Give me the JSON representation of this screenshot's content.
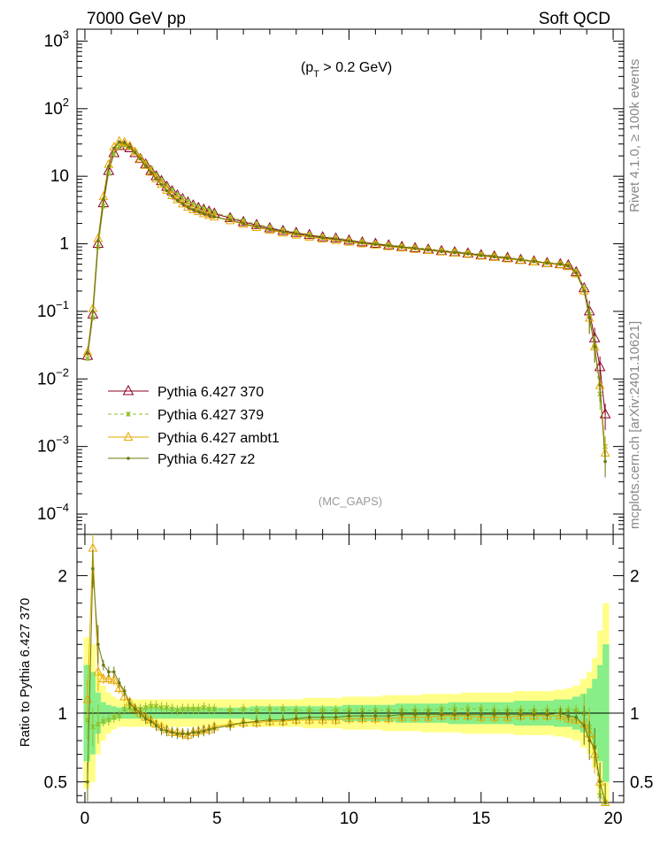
{
  "header": {
    "left": "7000 GeV pp",
    "right": "Soft QCD",
    "cut_label": "(p",
    "cut_sub": "T",
    "cut_tail": " > 0.2 GeV)",
    "watermark": "(MC_GAPS)"
  },
  "side_labels": {
    "rivet": "Rivet 4.1.0, ≥ 100k events",
    "mcplots": "mcplots.cern.ch [arXiv:2401.10621]"
  },
  "colors": {
    "p370": "#8b0020",
    "p379": "#8fc027",
    "ambt1": "#e8a800",
    "z2": "#6b7a10",
    "band_yellow": "#ffff88",
    "band_green": "#88ee88"
  },
  "chart_data": [
    {
      "type": "line",
      "panel": "main",
      "title": "",
      "xlabel": "",
      "ylabel": "",
      "xlim": [
        -0.3,
        20.4
      ],
      "ylim": [
        5e-05,
        1500
      ],
      "yscale": "log",
      "xticks": [
        "0",
        "5",
        "10",
        "15",
        "20"
      ],
      "yticks": [
        {
          "mant": "10",
          "exp": "3"
        },
        {
          "mant": "10",
          "exp": "2"
        },
        {
          "mant": "10",
          "exp": ""
        },
        {
          "mant": "1",
          "exp": ""
        },
        {
          "mant": "10",
          "exp": "−1"
        },
        {
          "mant": "10",
          "exp": "−2"
        },
        {
          "mant": "10",
          "exp": "−3"
        },
        {
          "mant": "10",
          "exp": "−4"
        }
      ],
      "legend_position": "lower-left",
      "x": [
        0.1,
        0.3,
        0.5,
        0.7,
        0.9,
        1.1,
        1.3,
        1.5,
        1.7,
        1.9,
        2.1,
        2.3,
        2.5,
        2.7,
        2.9,
        3.1,
        3.3,
        3.5,
        3.7,
        3.9,
        4.1,
        4.3,
        4.5,
        4.7,
        4.9,
        5.5,
        6,
        6.5,
        7,
        7.5,
        8,
        8.5,
        9,
        9.5,
        10,
        10.5,
        11,
        11.5,
        12,
        12.5,
        13,
        13.5,
        14,
        14.5,
        15,
        15.5,
        16,
        16.5,
        17,
        17.5,
        18,
        18.3,
        18.6,
        18.9,
        19.1,
        19.3,
        19.5,
        19.7
      ],
      "series": [
        {
          "name": "Pythia 6.427 370",
          "style": "p370",
          "values": [
            0.022,
            0.09,
            1.0,
            4.0,
            12,
            22,
            28,
            28,
            26,
            22,
            18,
            15,
            12,
            10,
            8.5,
            7.0,
            6.0,
            5.2,
            4.6,
            4.1,
            3.7,
            3.4,
            3.2,
            3.0,
            2.8,
            2.4,
            2.1,
            1.9,
            1.7,
            1.55,
            1.45,
            1.35,
            1.25,
            1.2,
            1.12,
            1.05,
            1.0,
            0.95,
            0.9,
            0.86,
            0.82,
            0.78,
            0.75,
            0.72,
            0.68,
            0.65,
            0.62,
            0.58,
            0.55,
            0.52,
            0.5,
            0.48,
            0.38,
            0.22,
            0.1,
            0.04,
            0.015,
            0.003
          ]
        },
        {
          "name": "Pythia 6.427 379",
          "style": "p379",
          "values": [
            0.02,
            0.08,
            0.9,
            3.6,
            11,
            21,
            27,
            29,
            27,
            23,
            19,
            16,
            13,
            10.5,
            8.8,
            7.3,
            6.2,
            5.3,
            4.7,
            4.2,
            3.8,
            3.5,
            3.3,
            3.1,
            2.9,
            2.5,
            2.2,
            1.95,
            1.75,
            1.6,
            1.48,
            1.38,
            1.28,
            1.22,
            1.14,
            1.07,
            1.02,
            0.97,
            0.92,
            0.88,
            0.84,
            0.8,
            0.77,
            0.74,
            0.7,
            0.67,
            0.63,
            0.59,
            0.56,
            0.53,
            0.51,
            0.49,
            0.39,
            0.22,
            0.09,
            0.03,
            0.006,
            0.001
          ]
        },
        {
          "name": "Pythia 6.427 ambt1",
          "style": "ambt1",
          "values": [
            0.025,
            0.11,
            1.2,
            5.0,
            15,
            27,
            33,
            32,
            28,
            23,
            18,
            14.5,
            11.5,
            9.2,
            7.6,
            6.2,
            5.2,
            4.5,
            3.9,
            3.5,
            3.2,
            3.0,
            2.8,
            2.65,
            2.5,
            2.2,
            1.95,
            1.75,
            1.6,
            1.45,
            1.35,
            1.26,
            1.18,
            1.12,
            1.06,
            1.0,
            0.96,
            0.91,
            0.87,
            0.83,
            0.8,
            0.76,
            0.73,
            0.7,
            0.66,
            0.63,
            0.6,
            0.57,
            0.54,
            0.51,
            0.49,
            0.46,
            0.36,
            0.2,
            0.08,
            0.03,
            0.008,
            0.0008
          ]
        },
        {
          "name": "Pythia 6.427 z2",
          "style": "z2",
          "values": [
            0.024,
            0.1,
            1.1,
            4.6,
            14,
            26,
            32,
            31,
            27,
            22.5,
            18,
            14.3,
            11.4,
            9.1,
            7.5,
            6.1,
            5.1,
            4.4,
            3.9,
            3.5,
            3.2,
            3.0,
            2.8,
            2.65,
            2.5,
            2.25,
            2.0,
            1.8,
            1.63,
            1.5,
            1.4,
            1.3,
            1.22,
            1.16,
            1.09,
            1.03,
            0.98,
            0.93,
            0.89,
            0.85,
            0.81,
            0.77,
            0.74,
            0.71,
            0.67,
            0.64,
            0.61,
            0.58,
            0.55,
            0.52,
            0.5,
            0.47,
            0.37,
            0.2,
            0.08,
            0.03,
            0.008,
            0.0006
          ]
        }
      ]
    },
    {
      "type": "line",
      "panel": "ratio",
      "title": "",
      "xlabel": "",
      "ylabel": "Ratio to Pythia 6.427 370",
      "xlim": [
        -0.3,
        20.4
      ],
      "ylim": [
        0.35,
        2.3
      ],
      "yticks": [
        "0.5",
        "1",
        "2"
      ],
      "x": [
        0.1,
        0.3,
        0.5,
        0.7,
        0.9,
        1.1,
        1.3,
        1.5,
        1.7,
        1.9,
        2.1,
        2.3,
        2.5,
        2.7,
        2.9,
        3.1,
        3.3,
        3.5,
        3.7,
        3.9,
        4.1,
        4.3,
        4.5,
        4.7,
        4.9,
        5.5,
        6,
        6.5,
        7,
        7.5,
        8,
        8.5,
        9,
        9.5,
        10,
        10.5,
        11,
        11.5,
        12,
        12.5,
        13,
        13.5,
        14,
        14.5,
        15,
        15.5,
        16,
        16.5,
        17,
        17.5,
        18,
        18.3,
        18.6,
        18.9,
        19.1,
        19.3,
        19.5,
        19.7
      ],
      "band_yellow": [
        0.55,
        0.5,
        0.3,
        0.2,
        0.15,
        0.12,
        0.1,
        0.1,
        0.1,
        0.1,
        0.1,
        0.1,
        0.1,
        0.1,
        0.1,
        0.1,
        0.1,
        0.1,
        0.1,
        0.1,
        0.1,
        0.1,
        0.1,
        0.1,
        0.1,
        0.1,
        0.1,
        0.1,
        0.1,
        0.1,
        0.1,
        0.11,
        0.11,
        0.11,
        0.12,
        0.12,
        0.12,
        0.13,
        0.13,
        0.13,
        0.14,
        0.14,
        0.14,
        0.15,
        0.15,
        0.15,
        0.15,
        0.16,
        0.16,
        0.16,
        0.17,
        0.18,
        0.2,
        0.25,
        0.3,
        0.4,
        0.6,
        0.8
      ],
      "band_green": [
        0.35,
        0.3,
        0.15,
        0.08,
        0.06,
        0.05,
        0.04,
        0.04,
        0.04,
        0.04,
        0.04,
        0.04,
        0.04,
        0.04,
        0.04,
        0.04,
        0.04,
        0.04,
        0.04,
        0.04,
        0.04,
        0.04,
        0.04,
        0.04,
        0.04,
        0.04,
        0.04,
        0.05,
        0.05,
        0.05,
        0.05,
        0.05,
        0.05,
        0.05,
        0.06,
        0.06,
        0.06,
        0.06,
        0.07,
        0.07,
        0.07,
        0.07,
        0.08,
        0.08,
        0.08,
        0.08,
        0.08,
        0.09,
        0.09,
        0.09,
        0.1,
        0.1,
        0.12,
        0.14,
        0.18,
        0.25,
        0.35,
        0.5
      ],
      "series": [
        {
          "name": "Pythia 6.427 379",
          "style": "p379",
          "values": [
            0.95,
            0.9,
            0.92,
            0.94,
            0.95,
            0.97,
            0.98,
            1.03,
            1.04,
            1.03,
            1.03,
            1.04,
            1.05,
            1.05,
            1.04,
            1.04,
            1.03,
            1.02,
            1.03,
            1.03,
            1.03,
            1.03,
            1.04,
            1.03,
            1.03,
            1.02,
            1.03,
            1.02,
            1.03,
            1.03,
            1.02,
            1.02,
            1.02,
            1.02,
            1.02,
            1.02,
            1.02,
            1.02,
            1.02,
            1.02,
            1.02,
            1.03,
            1.03,
            1.03,
            1.03,
            1.02,
            1.02,
            1.02,
            1.02,
            1.02,
            1.02,
            1.02,
            1.02,
            1.0,
            0.9,
            0.75,
            0.4,
            0.33
          ]
        },
        {
          "name": "Pythia 6.427 ambt1",
          "style": "ambt1",
          "values": [
            1.1,
            2.2,
            1.3,
            1.25,
            1.25,
            1.24,
            1.18,
            1.12,
            1.08,
            1.03,
            1.0,
            0.97,
            0.95,
            0.92,
            0.9,
            0.88,
            0.86,
            0.86,
            0.85,
            0.84,
            0.86,
            0.87,
            0.88,
            0.88,
            0.9,
            0.92,
            0.93,
            0.93,
            0.94,
            0.94,
            0.95,
            0.95,
            0.95,
            0.95,
            0.96,
            0.96,
            0.96,
            0.96,
            0.97,
            0.97,
            0.97,
            0.98,
            0.98,
            0.98,
            0.97,
            0.97,
            0.97,
            0.98,
            0.98,
            0.98,
            0.98,
            0.96,
            0.95,
            0.92,
            0.85,
            0.7,
            0.5,
            0.35
          ]
        },
        {
          "name": "Pythia 6.427 z2",
          "style": "z2",
          "values": [
            0.5,
            2.05,
            1.5,
            1.35,
            1.3,
            1.3,
            1.22,
            1.16,
            1.07,
            1.03,
            1.0,
            0.96,
            0.94,
            0.91,
            0.88,
            0.87,
            0.86,
            0.85,
            0.85,
            0.85,
            0.86,
            0.86,
            0.87,
            0.88,
            0.89,
            0.91,
            0.93,
            0.94,
            0.95,
            0.95,
            0.96,
            0.97,
            0.97,
            0.97,
            0.98,
            0.98,
            0.98,
            0.98,
            0.99,
            0.99,
            0.99,
            0.99,
            0.99,
            0.99,
            0.99,
            0.99,
            0.99,
            0.99,
            0.99,
            0.99,
            1.0,
            0.98,
            0.97,
            0.91,
            0.8,
            0.75,
            0.5,
            0.35
          ]
        }
      ]
    }
  ]
}
